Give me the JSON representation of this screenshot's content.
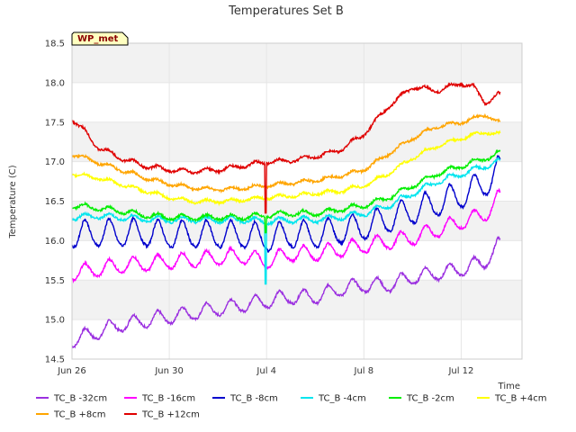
{
  "chart_data": {
    "type": "line",
    "title": "Temperatures Set B",
    "xlabel": "Time",
    "ylabel": "Temperature (C)",
    "station_badge": "WP_met",
    "x_range_days": [
      0,
      18.5
    ],
    "ylim": [
      14.5,
      18.5
    ],
    "x_ticks": [
      {
        "day": 0,
        "label": "Jun 26"
      },
      {
        "day": 4,
        "label": "Jun 30"
      },
      {
        "day": 8,
        "label": "Jul 4"
      },
      {
        "day": 12,
        "label": "Jul 8"
      },
      {
        "day": 16,
        "label": "Jul 12"
      }
    ],
    "y_ticks": [
      {
        "value": 14.5,
        "label": "14.5"
      },
      {
        "value": 15.0,
        "label": "15.0"
      },
      {
        "value": 15.5,
        "label": "15.5"
      },
      {
        "value": 16.0,
        "label": "16.0"
      },
      {
        "value": 16.5,
        "label": "16.5"
      },
      {
        "value": 17.0,
        "label": "17.0"
      },
      {
        "value": 17.5,
        "label": "17.5"
      },
      {
        "value": 18.0,
        "label": "18.0"
      },
      {
        "value": 18.5,
        "label": "18.5"
      }
    ],
    "grid": true,
    "legend_position": "bottom",
    "series": [
      {
        "name": "TC_B -32cm",
        "color": "#9b30e0",
        "x": [
          0,
          1,
          2,
          3,
          4,
          5,
          6,
          7,
          8,
          9,
          10,
          11,
          12,
          13,
          14,
          15,
          16,
          17,
          17.5
        ],
        "y": [
          14.75,
          14.85,
          14.95,
          15.0,
          15.05,
          15.1,
          15.15,
          15.2,
          15.25,
          15.3,
          15.3,
          15.4,
          15.45,
          15.45,
          15.55,
          15.6,
          15.65,
          15.75,
          15.95
        ],
        "amplitude": 0.17
      },
      {
        "name": "TC_B -16cm",
        "color": "#ff00ff",
        "x": [
          0,
          1,
          2,
          3,
          4,
          5,
          6,
          7,
          8,
          9,
          10,
          11,
          12,
          13,
          14,
          15,
          16,
          17,
          17.5
        ],
        "y": [
          15.6,
          15.65,
          15.7,
          15.72,
          15.75,
          15.77,
          15.8,
          15.82,
          15.75,
          15.85,
          15.85,
          15.9,
          15.95,
          16.0,
          16.05,
          16.15,
          16.25,
          16.35,
          16.55
        ],
        "amplitude": 0.18
      },
      {
        "name": "TC_B -8cm",
        "color": "#0000cd",
        "x": [
          0,
          1,
          2,
          3,
          4,
          5,
          6,
          7,
          8,
          9,
          10,
          11,
          12,
          13,
          14,
          15,
          16,
          17,
          17.5
        ],
        "y": [
          16.1,
          16.12,
          16.12,
          16.12,
          16.1,
          16.1,
          16.1,
          16.1,
          16.05,
          16.1,
          16.1,
          16.15,
          16.2,
          16.3,
          16.4,
          16.5,
          16.6,
          16.75,
          16.9
        ],
        "amplitude": 0.32
      },
      {
        "name": "TC_B -4cm",
        "color": "#00e5ee",
        "x": [
          0,
          1,
          2,
          3,
          4,
          5,
          6,
          7,
          8,
          9,
          10,
          11,
          12,
          13,
          14,
          15,
          16,
          17,
          17.5
        ],
        "y": [
          16.3,
          16.32,
          16.3,
          16.28,
          16.27,
          16.27,
          16.27,
          16.27,
          16.25,
          16.27,
          16.27,
          16.3,
          16.35,
          16.45,
          16.6,
          16.75,
          16.85,
          16.95,
          17.0
        ],
        "amplitude": 0.07
      },
      {
        "name": "TC_B -2cm",
        "color": "#00ee00",
        "x": [
          0,
          1,
          2,
          3,
          4,
          5,
          6,
          7,
          8,
          9,
          10,
          11,
          12,
          13,
          14,
          15,
          16,
          17,
          17.5
        ],
        "y": [
          16.45,
          16.42,
          16.38,
          16.33,
          16.3,
          16.3,
          16.3,
          16.3,
          16.33,
          16.35,
          16.35,
          16.4,
          16.45,
          16.55,
          16.7,
          16.85,
          16.95,
          17.05,
          17.1
        ],
        "amplitude": 0.06
      },
      {
        "name": "TC_B +4cm",
        "color": "#ffff00",
        "x": [
          0,
          1,
          2,
          3,
          4,
          5,
          6,
          7,
          8,
          9,
          10,
          11,
          12,
          13,
          14,
          15,
          16,
          17,
          17.5
        ],
        "y": [
          16.85,
          16.8,
          16.72,
          16.63,
          16.55,
          16.5,
          16.5,
          16.52,
          16.55,
          16.57,
          16.6,
          16.63,
          16.7,
          16.85,
          17.05,
          17.2,
          17.3,
          17.38,
          17.35
        ],
        "amplitude": 0.04
      },
      {
        "name": "TC_B +8cm",
        "color": "#ffa500",
        "x": [
          0,
          1,
          2,
          3,
          4,
          5,
          6,
          7,
          8,
          9,
          10,
          11,
          12,
          13,
          14,
          15,
          16,
          17,
          17.5
        ],
        "y": [
          17.1,
          17.0,
          16.9,
          16.8,
          16.72,
          16.67,
          16.65,
          16.67,
          16.7,
          16.73,
          16.77,
          16.82,
          16.9,
          17.1,
          17.3,
          17.45,
          17.5,
          17.6,
          17.5
        ],
        "amplitude": 0.04
      },
      {
        "name": "TC_B +12cm",
        "color": "#e00000",
        "x": [
          0,
          0.5,
          1,
          2,
          3,
          4,
          5,
          6,
          7,
          8,
          9,
          10,
          11,
          12,
          13,
          14,
          15,
          16,
          16.5,
          17,
          17.5
        ],
        "y": [
          17.55,
          17.4,
          17.2,
          17.05,
          16.95,
          16.9,
          16.88,
          16.9,
          16.95,
          17.0,
          17.02,
          17.07,
          17.15,
          17.35,
          17.7,
          17.95,
          17.9,
          18.0,
          17.95,
          17.75,
          17.85
        ],
        "amplitude": 0.05
      }
    ]
  }
}
